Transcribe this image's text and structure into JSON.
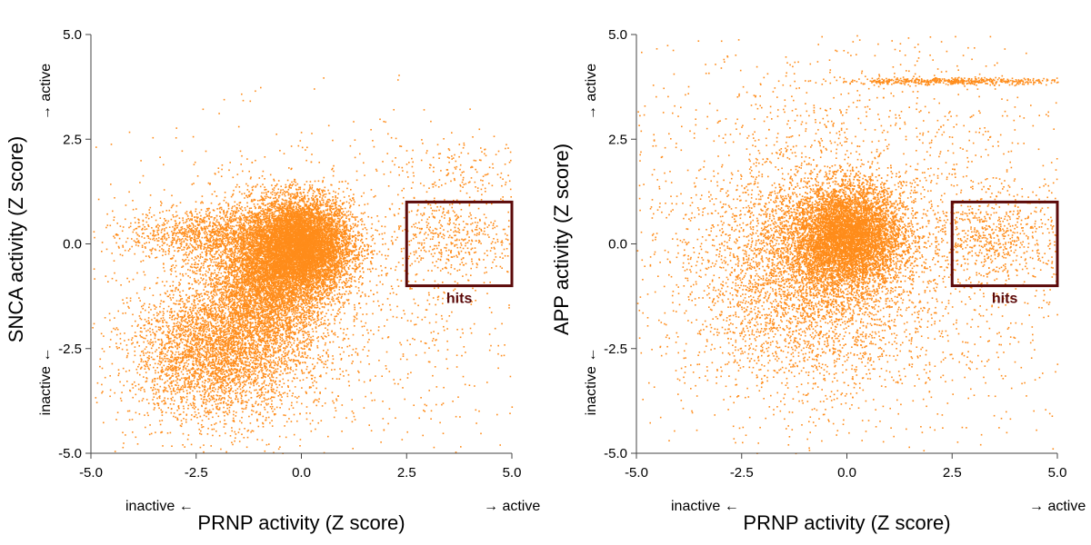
{
  "chart_data": [
    {
      "type": "scatter",
      "title": "",
      "xlabel": "PRNP activity (Z score)",
      "ylabel": "SNCA activity (Z score)",
      "xlim": [
        -5.0,
        5.0
      ],
      "ylim": [
        -5.0,
        5.0
      ],
      "x_ticks": [
        "-5.0",
        "-2.5",
        "0.0",
        "2.5",
        "5.0"
      ],
      "y_ticks": [
        "-5.0",
        "-2.5",
        "0.0",
        "2.5",
        "5.0"
      ],
      "x_direction": {
        "low": "inactive ←",
        "high": "→ active"
      },
      "y_direction": {
        "low": "inactive ←",
        "high": "→ active"
      },
      "point_color": "#ff8c1a",
      "hits_box": {
        "label": "hits",
        "x": [
          2.5,
          5.0
        ],
        "y": [
          -1.0,
          1.0
        ],
        "color": "#5c0a0a"
      },
      "grid": false,
      "series": [
        {
          "clusters": [
            {
              "cx": 0.0,
              "cy": 0.0,
              "sx": 0.6,
              "sy": 0.55,
              "n": 8000
            },
            {
              "cx": -0.8,
              "cy": -0.8,
              "sx": 0.75,
              "sy": 0.85,
              "n": 5000
            },
            {
              "cx": -2.0,
              "cy": -2.6,
              "sx": 1.0,
              "sy": 0.8,
              "n": 3500
            },
            {
              "cx": -2.3,
              "cy": 0.25,
              "sx": 0.9,
              "sy": 0.3,
              "n": 1000
            },
            {
              "cx": 3.5,
              "cy": 0.2,
              "sx": 0.8,
              "sy": 0.5,
              "n": 450
            },
            {
              "cx": 3.7,
              "cy": 1.8,
              "sx": 0.8,
              "sy": 0.4,
              "n": 150
            },
            {
              "cx": 0.0,
              "cy": -1.5,
              "sx": 2.8,
              "sy": 2.0,
              "n": 1500
            }
          ]
        }
      ]
    },
    {
      "type": "scatter",
      "title": "",
      "xlabel": "PRNP activity (Z score)",
      "ylabel": "APP activity (Z score)",
      "xlim": [
        -5.0,
        5.0
      ],
      "ylim": [
        -5.0,
        5.0
      ],
      "x_ticks": [
        "-5.0",
        "-2.5",
        "0.0",
        "2.5",
        "5.0"
      ],
      "y_ticks": [
        "-5.0",
        "-2.5",
        "0.0",
        "2.5",
        "5.0"
      ],
      "x_direction": {
        "low": "inactive ←",
        "high": "→ active"
      },
      "y_direction": {
        "low": "inactive ←",
        "high": "→ active"
      },
      "point_color": "#ff8c1a",
      "hits_box": {
        "label": "hits",
        "x": [
          2.5,
          5.0
        ],
        "y": [
          -1.0,
          1.0
        ],
        "color": "#5c0a0a"
      },
      "grid": false,
      "series": [
        {
          "clusters": [
            {
              "cx": 0.0,
              "cy": 0.2,
              "sx": 0.65,
              "sy": 0.6,
              "n": 9000
            },
            {
              "cx": -1.0,
              "cy": -0.8,
              "sx": 1.2,
              "sy": 1.2,
              "n": 3000
            },
            {
              "cx": 3.5,
              "cy": 0.2,
              "sx": 0.8,
              "sy": 0.5,
              "n": 500
            },
            {
              "cx": 0.0,
              "cy": 0.0,
              "sx": 2.8,
              "sy": 2.4,
              "n": 3000
            },
            {
              "cx": 2.5,
              "cy": 3.9,
              "sx": 1.4,
              "sy": 0.04,
              "n": 500
            }
          ]
        }
      ]
    }
  ]
}
